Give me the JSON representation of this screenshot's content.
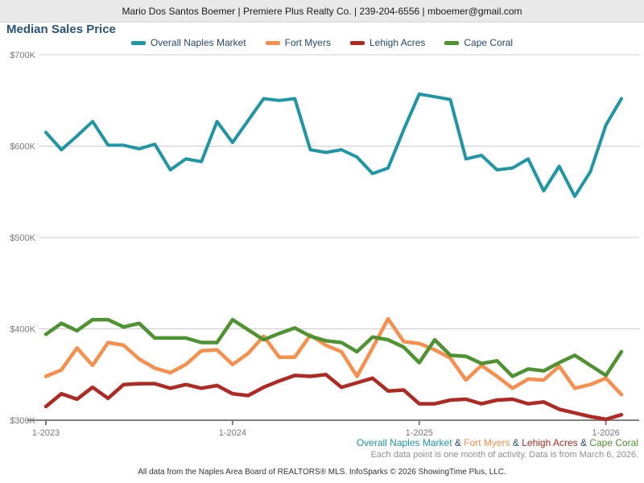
{
  "header": {
    "text": "Mario Dos Santos Boemer | Premiere Plus Realty Co. | 239-204-6556 | mboemer@gmail.com"
  },
  "chart_data": {
    "type": "line",
    "title": "Median Sales Price",
    "unit": "$K",
    "grid": true,
    "legend_position": "top-center",
    "ylim": [
      300,
      700
    ],
    "y_ticks": [
      {
        "label": "$700K",
        "value": 700
      },
      {
        "label": "$600K",
        "value": 600
      },
      {
        "label": "$500K",
        "value": 500
      },
      {
        "label": "$400K",
        "value": 400
      },
      {
        "label": "$300K",
        "value": 300
      }
    ],
    "x": [
      "1-2023",
      "2-2023",
      "3-2023",
      "4-2023",
      "5-2023",
      "6-2023",
      "7-2023",
      "8-2023",
      "9-2023",
      "10-2023",
      "11-2023",
      "12-2023",
      "1-2024",
      "2-2024",
      "3-2024",
      "4-2024",
      "5-2024",
      "6-2024",
      "7-2024",
      "8-2024",
      "9-2024",
      "10-2024",
      "11-2024",
      "12-2024",
      "1-2025",
      "2-2025",
      "3-2025",
      "4-2025",
      "5-2025",
      "6-2025",
      "7-2025",
      "8-2025",
      "9-2025",
      "10-2025",
      "11-2025",
      "12-2025",
      "1-2026",
      "2-2026"
    ],
    "x_ticks": [
      {
        "label": "1-2023",
        "index": 0
      },
      {
        "label": "1-2024",
        "index": 12
      },
      {
        "label": "1-2025",
        "index": 24
      },
      {
        "label": "1-2026",
        "index": 36
      }
    ],
    "series": [
      {
        "name": "Overall Naples Market",
        "color": "#2095a3",
        "values": [
          615,
          596,
          611,
          627,
          601,
          601,
          597,
          602,
          574,
          586,
          583,
          627,
          604,
          628,
          652,
          650,
          652,
          596,
          593,
          596,
          588,
          570,
          576,
          618,
          657,
          654,
          651,
          586,
          590,
          574,
          576,
          586,
          551,
          578,
          545,
          572,
          623,
          652
        ]
      },
      {
        "name": "Fort Myers",
        "color": "#f78f4e",
        "values": [
          348,
          355,
          379,
          360,
          385,
          382,
          367,
          357,
          352,
          361,
          376,
          377,
          361,
          373,
          392,
          369,
          369,
          393,
          382,
          375,
          348,
          379,
          411,
          386,
          384,
          377,
          368,
          344,
          360,
          348,
          335,
          345,
          344,
          359,
          335,
          339,
          346,
          328
        ]
      },
      {
        "name": "Lehigh Acres",
        "color": "#ae2a24",
        "values": [
          315,
          329,
          323,
          336,
          324,
          339,
          340,
          340,
          335,
          339,
          335,
          338,
          329,
          327,
          336,
          343,
          349,
          348,
          350,
          336,
          341,
          346,
          332,
          333,
          318,
          318,
          322,
          323,
          318,
          322,
          323,
          318,
          320,
          312,
          308,
          304,
          301,
          306
        ]
      },
      {
        "name": "Cape Coral",
        "color": "#4f9232",
        "values": [
          394,
          406,
          398,
          410,
          410,
          402,
          406,
          390,
          390,
          390,
          385,
          385,
          410,
          399,
          388,
          395,
          401,
          392,
          387,
          385,
          375,
          391,
          388,
          380,
          363,
          388,
          371,
          370,
          362,
          365,
          348,
          356,
          354,
          363,
          371,
          360,
          349,
          375
        ]
      }
    ]
  },
  "footer": {
    "series_joiner": "&",
    "note": "Each data point is one month of activity. Data is from March 6, 2026.",
    "attribution": "All data from the Naples Area Board of REALTORS® MLS. InfoSparks © 2026 ShowingTime Plus, LLC."
  }
}
